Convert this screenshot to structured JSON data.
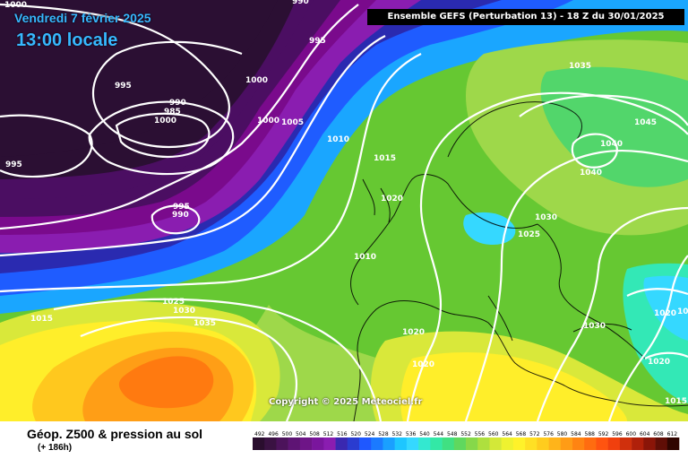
{
  "header": {
    "date": "Vendredi 7 février 2025",
    "time": "13:00 locale",
    "model": "Ensemble GEFS  (Perturbation 13)  -  18 Z du 30/01/2025"
  },
  "copyright": "Copyright © 2025 Meteociel.fr",
  "footer": {
    "title": "Géop. Z500 & pression au sol",
    "subtitle": "(+ 186h)"
  },
  "colors": {
    "bg": "#66c832",
    "bands": [
      "#2b0f33",
      "#4b0e62",
      "#7a0a8c",
      "#8a1db0",
      "#2a2ab0",
      "#1f5cff",
      "#1aa6ff",
      "#35d8ff",
      "#33e8b6",
      "#52d66b",
      "#9ed84a",
      "#d9e83a",
      "#ffee2a",
      "#ffc81e",
      "#ff9e16",
      "#ff7a10",
      "#ff5a12"
    ],
    "legend": [
      "#2a0e2e",
      "#3a1242",
      "#4c135b",
      "#5e1474",
      "#6e1587",
      "#7a169d",
      "#8a1db0",
      "#3a28b0",
      "#2a3cd0",
      "#1f58ff",
      "#1b7aff",
      "#1aa0ff",
      "#1ec6ff",
      "#35d8ff",
      "#33e8d0",
      "#33e8a6",
      "#40e082",
      "#5fd85e",
      "#86d84a",
      "#aee03e",
      "#d3e838",
      "#eef230",
      "#fff22a",
      "#ffe024",
      "#ffcc1e",
      "#ffb41a",
      "#ff9c16",
      "#ff8412",
      "#ff6c10",
      "#ff5410",
      "#f0400e",
      "#d0300c",
      "#b0200a",
      "#8a1508",
      "#600e06",
      "#300500"
    ]
  },
  "legend_ticks": [
    "492",
    "496",
    "500",
    "504",
    "508",
    "512",
    "516",
    "520",
    "524",
    "528",
    "532",
    "536",
    "540",
    "544",
    "548",
    "552",
    "556",
    "560",
    "564",
    "568",
    "572",
    "576",
    "580",
    "584",
    "588",
    "592",
    "596",
    "600",
    "604",
    "608",
    "612"
  ],
  "isobar_labels": [
    "1000",
    "990",
    "995",
    "1000",
    "995",
    "990",
    "985",
    "1000",
    "1000",
    "1005",
    "1010",
    "995",
    "995",
    "990",
    "1015",
    "1020",
    "1010",
    "1025",
    "1030",
    "1035",
    "1015",
    "1035",
    "1045",
    "1040",
    "1040",
    "1030",
    "1025",
    "1020",
    "1030",
    "1020",
    "1020",
    "1020",
    "1015",
    "1015"
  ]
}
